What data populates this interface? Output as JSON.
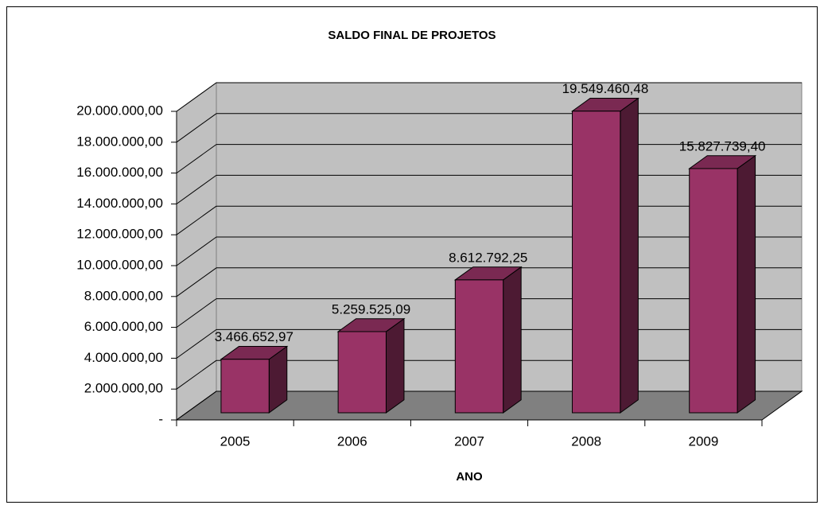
{
  "chart_data": {
    "type": "bar3d",
    "title": "SALDO FINAL DE PROJETOS",
    "x_label": "ANO",
    "categories": [
      "2005",
      "2006",
      "2007",
      "2008",
      "2009"
    ],
    "values": [
      3466652.97,
      5259525.09,
      8612792.25,
      19549460.48,
      15827739.4
    ],
    "value_labels": [
      "3.466.652,97",
      "5.259.525,09",
      "8.612.792,25",
      "19.549.460,48",
      "15.827.739,40"
    ],
    "color": "#993366",
    "ylim": [
      0,
      20000000
    ],
    "yticks": [
      {
        "value": 0,
        "label": "-"
      },
      {
        "value": 2000000,
        "label": "2.000.000,00"
      },
      {
        "value": 4000000,
        "label": "4.000.000,00"
      },
      {
        "value": 6000000,
        "label": "6.000.000,00"
      },
      {
        "value": 8000000,
        "label": "8.000.000,00"
      },
      {
        "value": 10000000,
        "label": "10.000.000,00"
      },
      {
        "value": 12000000,
        "label": "12.000.000,00"
      },
      {
        "value": 14000000,
        "label": "14.000.000,00"
      },
      {
        "value": 16000000,
        "label": "16.000.000,00"
      },
      {
        "value": 18000000,
        "label": "18.000.000,00"
      },
      {
        "value": 20000000,
        "label": "20.000.000,00"
      }
    ],
    "grid": true
  }
}
